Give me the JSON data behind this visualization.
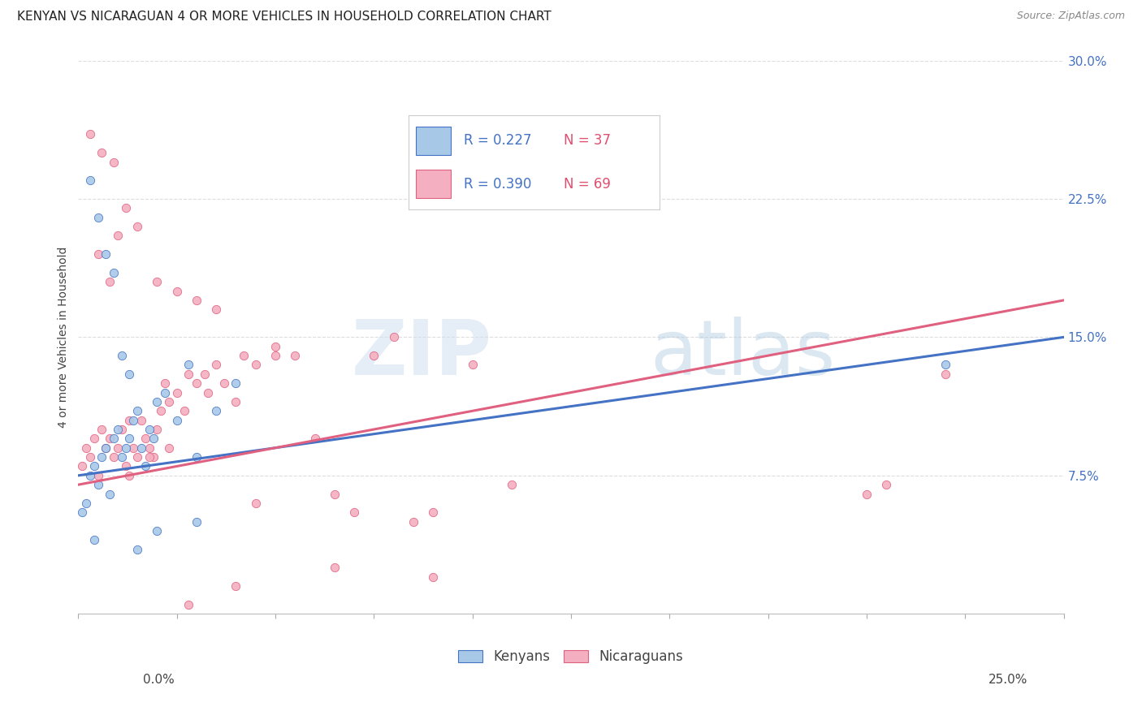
{
  "title": "KENYAN VS NICARAGUAN 4 OR MORE VEHICLES IN HOUSEHOLD CORRELATION CHART",
  "source": "Source: ZipAtlas.com",
  "ylabel": "4 or more Vehicles in Household",
  "xlim": [
    0.0,
    25.0
  ],
  "ylim": [
    0.0,
    30.0
  ],
  "yticks": [
    7.5,
    15.0,
    22.5,
    30.0
  ],
  "xticks": [
    0.0,
    2.5,
    5.0,
    7.5,
    10.0,
    12.5,
    15.0,
    17.5,
    20.0,
    22.5,
    25.0
  ],
  "kenyan_color": "#a8c8e8",
  "nicaraguan_color": "#f4b0c0",
  "kenyan_line_color": "#4472c4",
  "nicaraguan_line_color": "#e06080",
  "kenyan_R": 0.227,
  "kenyan_N": 37,
  "nicaraguan_R": 0.39,
  "nicaraguan_N": 69,
  "kenyan_x": [
    0.1,
    0.2,
    0.3,
    0.4,
    0.5,
    0.6,
    0.7,
    0.8,
    0.9,
    1.0,
    1.1,
    1.2,
    1.3,
    1.4,
    1.5,
    1.6,
    1.7,
    1.8,
    1.9,
    2.0,
    2.2,
    2.5,
    2.8,
    3.0,
    3.5,
    4.0,
    0.3,
    0.5,
    0.7,
    0.9,
    1.1,
    1.3,
    3.0,
    22.0,
    2.0,
    1.5,
    0.4
  ],
  "kenyan_y": [
    5.5,
    6.0,
    7.5,
    8.0,
    7.0,
    8.5,
    9.0,
    6.5,
    9.5,
    10.0,
    8.5,
    9.0,
    9.5,
    10.5,
    11.0,
    9.0,
    8.0,
    10.0,
    9.5,
    11.5,
    12.0,
    10.5,
    13.5,
    8.5,
    11.0,
    12.5,
    23.5,
    21.5,
    19.5,
    18.5,
    14.0,
    13.0,
    5.0,
    13.5,
    4.5,
    3.5,
    4.0
  ],
  "nicaraguan_x": [
    0.1,
    0.2,
    0.3,
    0.4,
    0.5,
    0.6,
    0.7,
    0.8,
    0.9,
    1.0,
    1.1,
    1.2,
    1.3,
    1.4,
    1.5,
    1.6,
    1.7,
    1.8,
    1.9,
    2.0,
    2.1,
    2.2,
    2.3,
    2.5,
    2.7,
    2.8,
    3.0,
    3.2,
    3.3,
    3.5,
    3.7,
    4.0,
    4.2,
    4.5,
    5.0,
    5.5,
    6.0,
    6.5,
    7.0,
    7.5,
    8.0,
    8.5,
    9.0,
    10.0,
    11.0,
    0.5,
    0.8,
    1.0,
    1.2,
    1.5,
    2.0,
    2.5,
    3.0,
    3.5,
    4.5,
    5.0,
    0.3,
    0.6,
    0.9,
    1.3,
    1.8,
    2.3,
    2.8,
    4.0,
    6.5,
    9.0,
    20.5,
    22.0,
    20.0
  ],
  "nicaraguan_y": [
    8.0,
    9.0,
    8.5,
    9.5,
    7.5,
    10.0,
    9.0,
    9.5,
    8.5,
    9.0,
    10.0,
    8.0,
    10.5,
    9.0,
    8.5,
    10.5,
    9.5,
    9.0,
    8.5,
    10.0,
    11.0,
    12.5,
    11.5,
    12.0,
    11.0,
    13.0,
    12.5,
    13.0,
    12.0,
    13.5,
    12.5,
    11.5,
    14.0,
    13.5,
    14.5,
    14.0,
    9.5,
    6.5,
    5.5,
    14.0,
    15.0,
    5.0,
    5.5,
    13.5,
    7.0,
    19.5,
    18.0,
    20.5,
    22.0,
    21.0,
    18.0,
    17.5,
    17.0,
    16.5,
    6.0,
    14.0,
    26.0,
    25.0,
    24.5,
    7.5,
    8.5,
    9.0,
    0.5,
    1.5,
    2.5,
    2.0,
    7.0,
    13.0,
    6.5
  ],
  "watermark_zip": "ZIP",
  "watermark_atlas": "atlas",
  "background_color": "#ffffff",
  "grid_color": "#dddddd",
  "marker_size": 55,
  "legend_fontsize": 12,
  "title_fontsize": 11,
  "axis_label_fontsize": 10,
  "tick_fontsize": 11,
  "ytick_color": "#4472c4",
  "xtick_label_color": "#333333"
}
